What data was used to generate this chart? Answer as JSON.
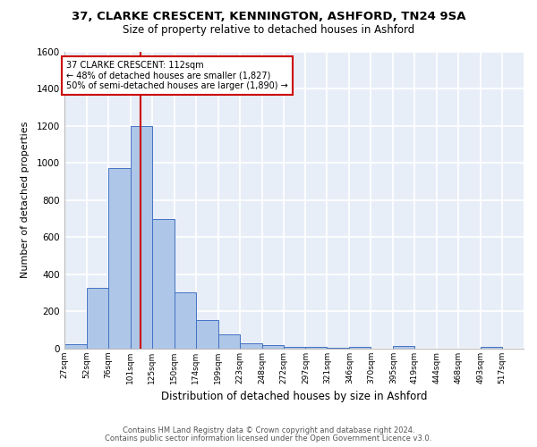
{
  "title1": "37, CLARKE CRESCENT, KENNINGTON, ASHFORD, TN24 9SA",
  "title2": "Size of property relative to detached houses in Ashford",
  "xlabel": "Distribution of detached houses by size in Ashford",
  "ylabel": "Number of detached properties",
  "footer1": "Contains HM Land Registry data © Crown copyright and database right 2024.",
  "footer2": "Contains public sector information licensed under the Open Government Licence v3.0.",
  "annotation_line1": "37 CLARKE CRESCENT: 112sqm",
  "annotation_line2": "← 48% of detached houses are smaller (1,827)",
  "annotation_line3": "50% of semi-detached houses are larger (1,890) →",
  "property_size": 112,
  "bar_edges": [
    27,
    52,
    76,
    101,
    125,
    150,
    174,
    199,
    223,
    248,
    272,
    297,
    321,
    346,
    370,
    395,
    419,
    444,
    468,
    493,
    517
  ],
  "bar_heights": [
    25,
    325,
    970,
    1200,
    700,
    305,
    155,
    75,
    30,
    20,
    10,
    10,
    5,
    10,
    0,
    15,
    0,
    0,
    0,
    10,
    0
  ],
  "bar_color": "#aec6e8",
  "bar_edge_color": "#4472c4",
  "ref_line_color": "#cc0000",
  "annotation_box_color": "#cc0000",
  "background_color": "#e8eef8",
  "grid_color": "#ffffff",
  "ylim": [
    0,
    1600
  ],
  "yticks": [
    0,
    200,
    400,
    600,
    800,
    1000,
    1200,
    1400,
    1600
  ],
  "tick_labels": [
    "27sqm",
    "52sqm",
    "76sqm",
    "101sqm",
    "125sqm",
    "150sqm",
    "174sqm",
    "199sqm",
    "223sqm",
    "248sqm",
    "272sqm",
    "297sqm",
    "321sqm",
    "346sqm",
    "370sqm",
    "395sqm",
    "419sqm",
    "444sqm",
    "468sqm",
    "493sqm",
    "517sqm"
  ]
}
